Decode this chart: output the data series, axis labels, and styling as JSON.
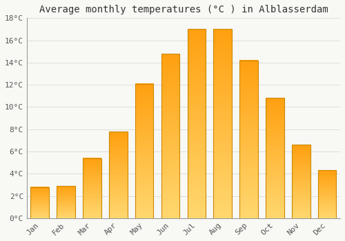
{
  "title": "Average monthly temperatures (°C ) in Alblasserdam",
  "months": [
    "Jan",
    "Feb",
    "Mar",
    "Apr",
    "May",
    "Jun",
    "Jul",
    "Aug",
    "Sep",
    "Oct",
    "Nov",
    "Dec"
  ],
  "values": [
    2.8,
    2.9,
    5.4,
    7.8,
    12.1,
    14.8,
    17.0,
    17.0,
    14.2,
    10.8,
    6.6,
    4.3
  ],
  "bar_color_bottom": "#FFD870",
  "bar_color_top": "#FFA010",
  "bar_edge_color": "#CC8800",
  "ylim": [
    0,
    18
  ],
  "yticks": [
    0,
    2,
    4,
    6,
    8,
    10,
    12,
    14,
    16,
    18
  ],
  "ytick_labels": [
    "0°C",
    "2°C",
    "4°C",
    "6°C",
    "8°C",
    "10°C",
    "12°C",
    "14°C",
    "16°C",
    "18°C"
  ],
  "background_color": "#F8F8F5",
  "grid_color": "#DDDDDD",
  "title_fontsize": 10,
  "tick_fontsize": 8,
  "font_family": "monospace",
  "bar_width": 0.7
}
